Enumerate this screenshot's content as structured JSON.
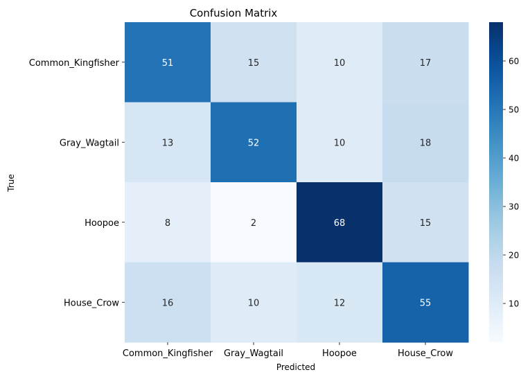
{
  "chart_data": {
    "type": "heatmap",
    "title": "Confusion Matrix",
    "xlabel": "Predicted",
    "ylabel": "True",
    "x_categories": [
      "Common_Kingfisher",
      "Gray_Wagtail",
      "Hoopoe",
      "House_Crow"
    ],
    "y_categories": [
      "Common_Kingfisher",
      "Gray_Wagtail",
      "Hoopoe",
      "House_Crow"
    ],
    "values": [
      [
        51,
        15,
        10,
        17
      ],
      [
        13,
        52,
        10,
        18
      ],
      [
        8,
        2,
        68,
        15
      ],
      [
        16,
        10,
        12,
        55
      ]
    ],
    "colormap": "Blues",
    "vmin": 2,
    "vmax": 68,
    "colorbar_ticks": [
      10,
      20,
      30,
      40,
      50,
      60
    ],
    "colorbar": true,
    "annotated": true
  }
}
